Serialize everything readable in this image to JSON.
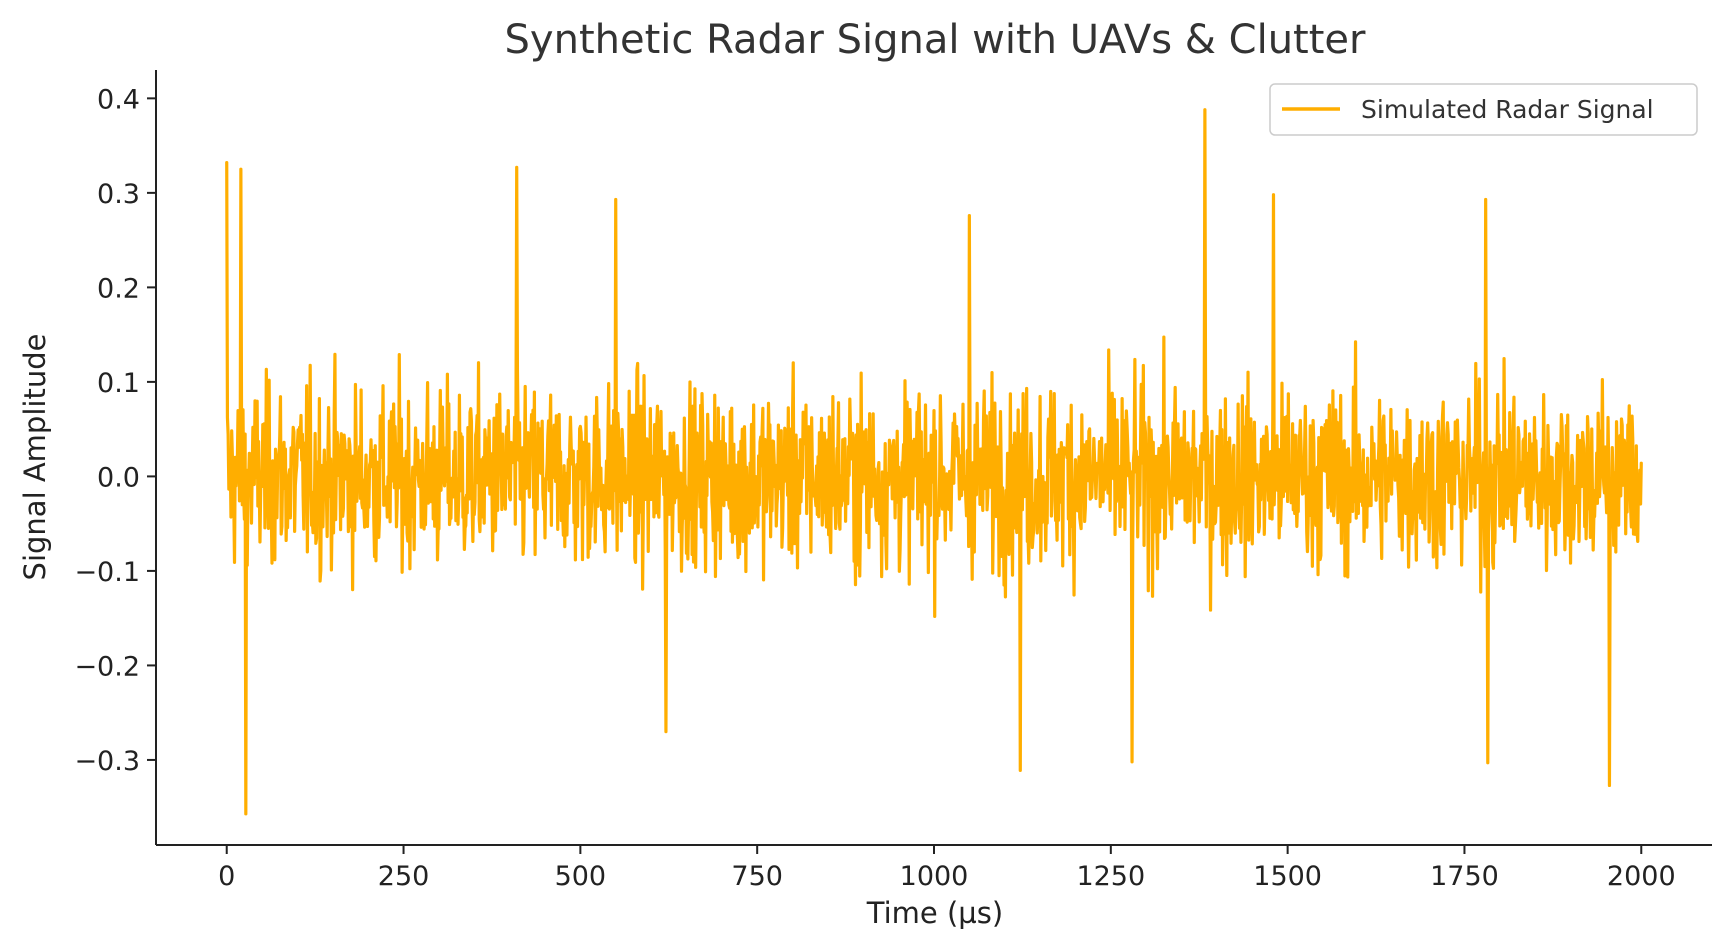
{
  "chart_data": {
    "type": "line",
    "title": "Synthetic Radar Signal with UAVs & Clutter",
    "xlabel": "Time (µs)",
    "ylabel": "Signal Amplitude",
    "xlim": [
      -100,
      2100
    ],
    "ylim": [
      -0.39,
      0.43
    ],
    "x_ticks": [
      0,
      250,
      500,
      750,
      1000,
      1250,
      1500,
      1750,
      2000
    ],
    "x_tick_labels": [
      "0",
      "250",
      "500",
      "750",
      "1000",
      "1250",
      "1500",
      "1750",
      "2000"
    ],
    "y_ticks": [
      -0.3,
      -0.2,
      -0.1,
      0.0,
      0.1,
      0.2,
      0.3,
      0.4
    ],
    "y_tick_labels": [
      "−0.3",
      "−0.2",
      "−0.1",
      "0.0",
      "0.1",
      "0.2",
      "0.3",
      "0.4"
    ],
    "grid": false,
    "legend_position": "top-right",
    "color": "#FFAE00",
    "series": [
      {
        "name": "Simulated Radar Signal",
        "x_start": 0,
        "x_end": 2000,
        "noise_std": 0.085,
        "notable_points": [
          {
            "x": 0,
            "y": 0.332
          },
          {
            "x": 20,
            "y": 0.325
          },
          {
            "x": 27,
            "y": -0.357
          },
          {
            "x": 410,
            "y": 0.327
          },
          {
            "x": 550,
            "y": 0.293
          },
          {
            "x": 621,
            "y": -0.27
          },
          {
            "x": 1050,
            "y": 0.276
          },
          {
            "x": 1122,
            "y": -0.311
          },
          {
            "x": 1280,
            "y": -0.302
          },
          {
            "x": 1383,
            "y": 0.388
          },
          {
            "x": 1480,
            "y": 0.298
          },
          {
            "x": 1780,
            "y": 0.293
          },
          {
            "x": 1783,
            "y": -0.303
          },
          {
            "x": 1955,
            "y": -0.327
          }
        ]
      }
    ]
  }
}
